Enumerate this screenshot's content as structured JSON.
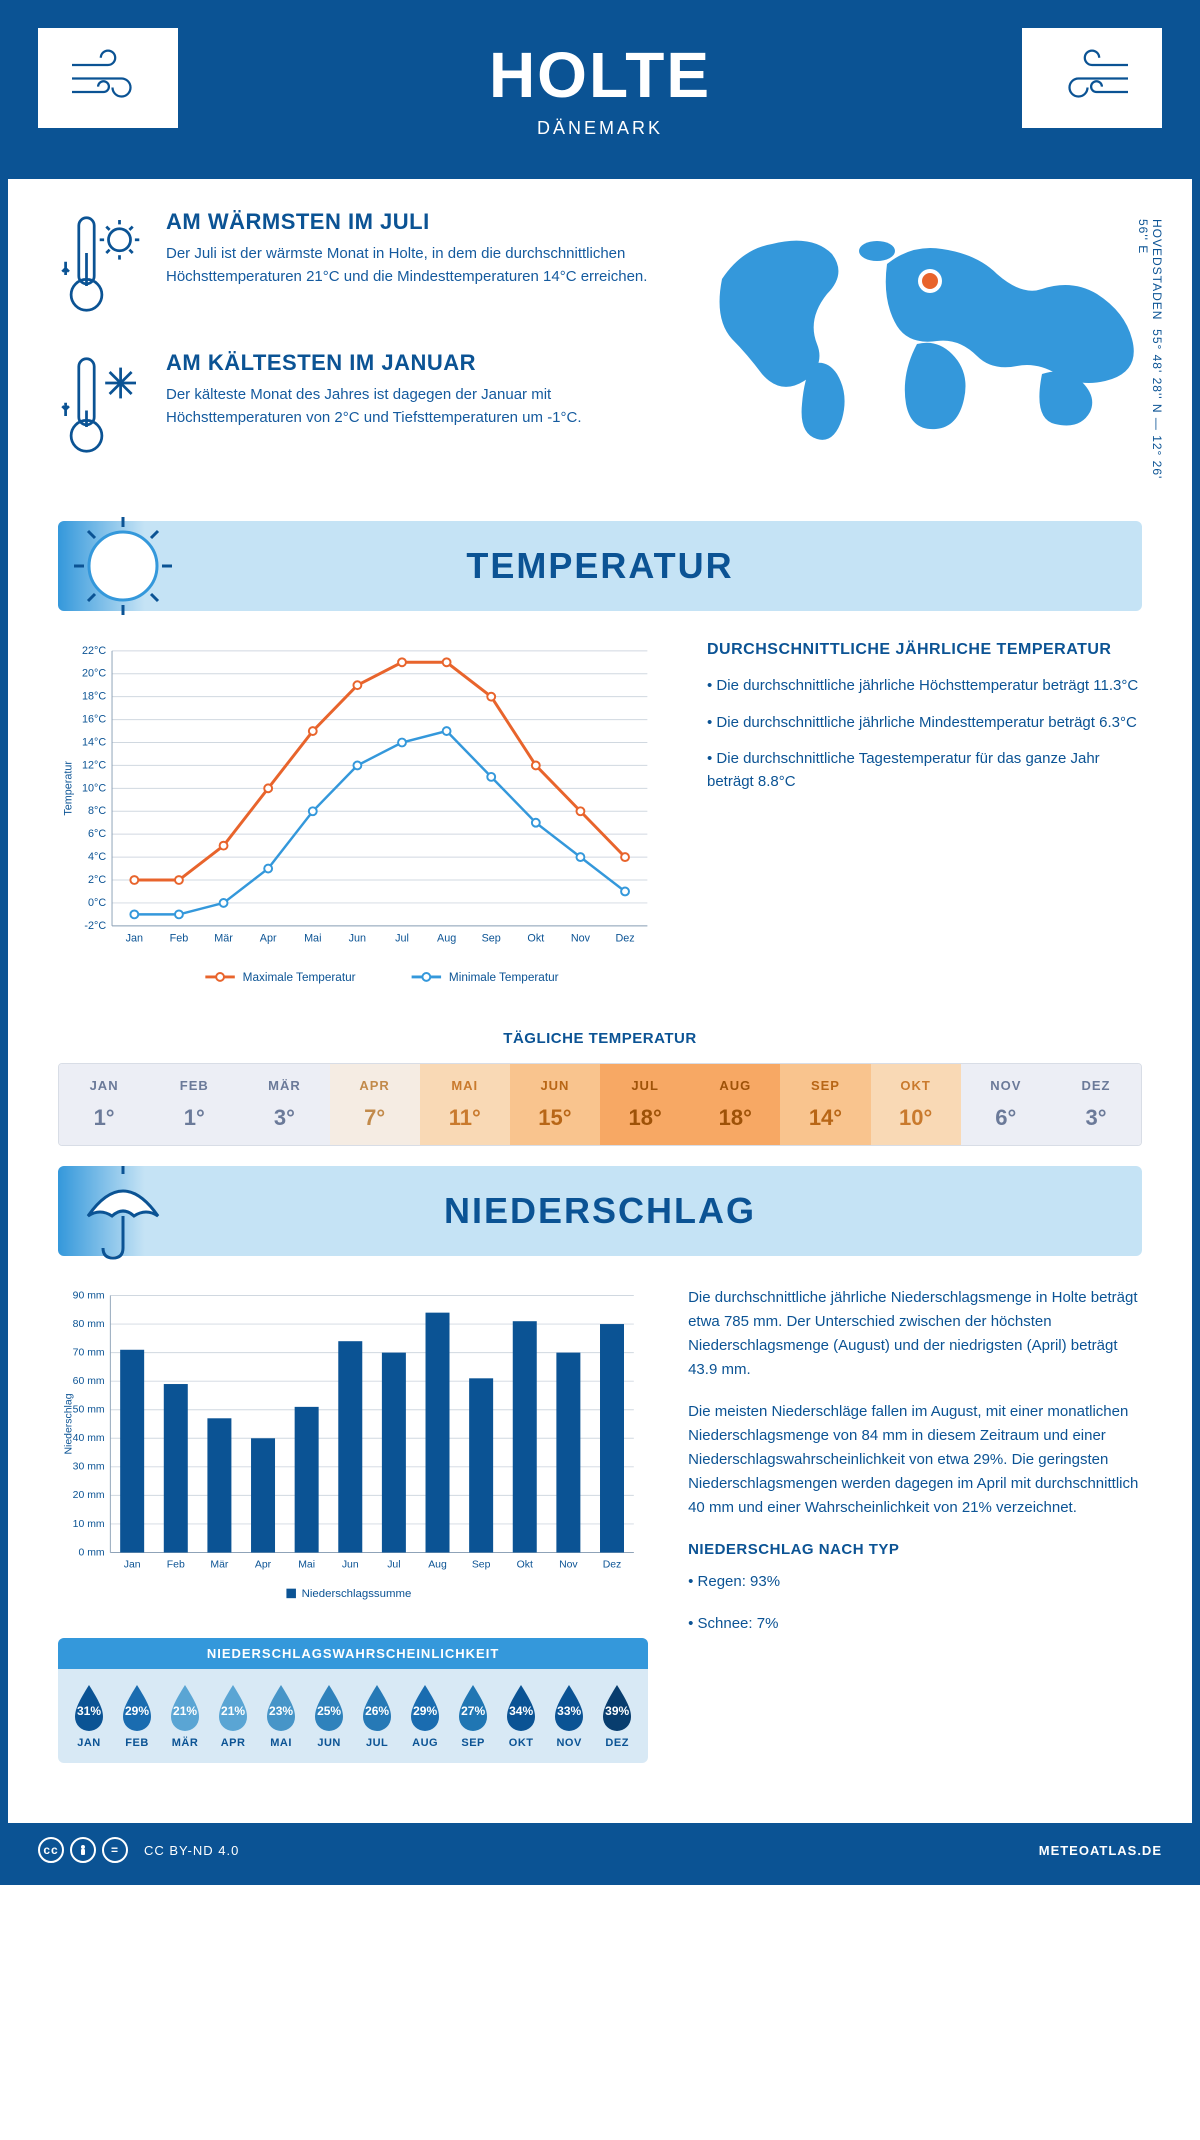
{
  "header": {
    "city": "HOLTE",
    "country": "DÄNEMARK"
  },
  "coords": {
    "text": "55° 48' 28'' N — 12° 26' 56'' E",
    "region": "HOVEDSTADEN"
  },
  "warmest": {
    "title": "AM WÄRMSTEN IM JULI",
    "text": "Der Juli ist der wärmste Monat in Holte, in dem die durchschnittlichen Höchsttemperaturen 21°C und die Mindesttemperaturen 14°C erreichen."
  },
  "coldest": {
    "title": "AM KÄLTESTEN IM JANUAR",
    "text": "Der kälteste Monat des Jahres ist dagegen der Januar mit Höchsttemperaturen von 2°C und Tiefsttemperaturen um -1°C."
  },
  "sections": {
    "temp": "TEMPERATUR",
    "precip": "NIEDERSCHLAG"
  },
  "temp_chart": {
    "months": [
      "Jan",
      "Feb",
      "Mär",
      "Apr",
      "Mai",
      "Jun",
      "Jul",
      "Aug",
      "Sep",
      "Okt",
      "Nov",
      "Dez"
    ],
    "max": [
      2,
      2,
      5,
      10,
      15,
      19,
      21,
      21,
      18,
      12,
      8,
      4
    ],
    "min": [
      -1,
      -1,
      0,
      3,
      8,
      12,
      14,
      15,
      11,
      7,
      4,
      1
    ],
    "ymin": -2,
    "ymax": 22,
    "ystep": 2,
    "ylabel": "Temperatur",
    "legend_max": "Maximale Temperatur",
    "legend_min": "Minimale Temperatur",
    "color_max": "#e8642c",
    "color_min": "#3498db",
    "grid_color": "#d0d8e0"
  },
  "temp_info": {
    "title": "DURCHSCHNITTLICHE JÄHRLICHE TEMPERATUR",
    "b1": "• Die durchschnittliche jährliche Höchsttemperatur beträgt 11.3°C",
    "b2": "• Die durchschnittliche jährliche Mindesttemperatur beträgt 6.3°C",
    "b3": "• Die durchschnittliche Tagestemperatur für das ganze Jahr beträgt 8.8°C"
  },
  "daily_temp": {
    "title": "TÄGLICHE TEMPERATUR",
    "months": [
      "JAN",
      "FEB",
      "MÄR",
      "APR",
      "MAI",
      "JUN",
      "JUL",
      "AUG",
      "SEP",
      "OKT",
      "NOV",
      "DEZ"
    ],
    "values": [
      "1°",
      "1°",
      "3°",
      "7°",
      "11°",
      "15°",
      "18°",
      "18°",
      "14°",
      "10°",
      "6°",
      "3°"
    ],
    "bg_colors": [
      "#eceef5",
      "#eceef5",
      "#eceef5",
      "#f5ece3",
      "#f9d9b5",
      "#f9c48e",
      "#f7a864",
      "#f7a864",
      "#f9c48e",
      "#f9d9b5",
      "#eceef5",
      "#eceef5"
    ],
    "text_colors": [
      "#6b7a99",
      "#6b7a99",
      "#6b7a99",
      "#c28a4a",
      "#c97a2d",
      "#b86616",
      "#9e5208",
      "#9e5208",
      "#b86616",
      "#c97a2d",
      "#6b7a99",
      "#6b7a99"
    ]
  },
  "precip_chart": {
    "months": [
      "Jan",
      "Feb",
      "Mär",
      "Apr",
      "Mai",
      "Jun",
      "Jul",
      "Aug",
      "Sep",
      "Okt",
      "Nov",
      "Dez"
    ],
    "values": [
      71,
      59,
      47,
      40,
      51,
      74,
      70,
      84,
      61,
      81,
      70,
      80
    ],
    "ymax": 90,
    "ystep": 10,
    "ylabel": "Niederschlag",
    "legend": "Niederschlagssumme",
    "bar_color": "#0b5394",
    "grid_color": "#d0d8e0"
  },
  "precip_text": {
    "p1": "Die durchschnittliche jährliche Niederschlagsmenge in Holte beträgt etwa 785 mm. Der Unterschied zwischen der höchsten Niederschlagsmenge (August) und der niedrigsten (April) beträgt 43.9 mm.",
    "p2": "Die meisten Niederschläge fallen im August, mit einer monatlichen Niederschlagsmenge von 84 mm in diesem Zeitraum und einer Niederschlagswahrscheinlichkeit von etwa 29%. Die geringsten Niederschlagsmengen werden dagegen im April mit durchschnittlich 40 mm und einer Wahrscheinlichkeit von 21% verzeichnet.",
    "type_title": "NIEDERSCHLAG NACH TYP",
    "type1": "• Regen: 93%",
    "type2": "• Schnee: 7%"
  },
  "prob": {
    "title": "NIEDERSCHLAGSWAHRSCHEINLICHKEIT",
    "months": [
      "JAN",
      "FEB",
      "MÄR",
      "APR",
      "MAI",
      "JUN",
      "JUL",
      "AUG",
      "SEP",
      "OKT",
      "NOV",
      "DEZ"
    ],
    "values": [
      "31%",
      "29%",
      "21%",
      "21%",
      "23%",
      "25%",
      "26%",
      "29%",
      "27%",
      "34%",
      "33%",
      "39%"
    ],
    "drop_colors": [
      "#0b5394",
      "#1a6cb0",
      "#5aa5d4",
      "#5aa5d4",
      "#4795c8",
      "#2f82bc",
      "#2679b6",
      "#1a6cb0",
      "#2076b3",
      "#0b5394",
      "#0b5394",
      "#083d6e"
    ]
  },
  "footer": {
    "license": "CC BY-ND 4.0",
    "site": "METEOATLAS.DE"
  }
}
